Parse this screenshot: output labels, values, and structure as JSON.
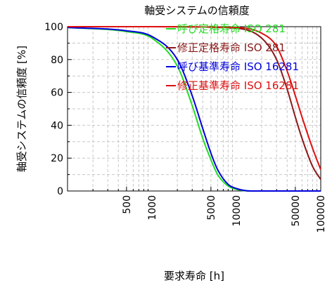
{
  "chart_data": {
    "type": "line",
    "title": "軸受システムの信頼度",
    "xlabel": "要求寿命 [h]",
    "ylabel": "軸受システムの信頼度 [%]",
    "x_scale": "log",
    "xlim": [
      100,
      100000
    ],
    "ylim": [
      0,
      100
    ],
    "x_ticks": [
      500,
      1000,
      5000,
      10000,
      50000,
      100000
    ],
    "x_tick_labels": [
      "500",
      "1000",
      "5000",
      "10000",
      "50000",
      "100000"
    ],
    "y_ticks": [
      0,
      20,
      40,
      60,
      80,
      100
    ],
    "y_tick_labels": [
      "0",
      "20",
      "40",
      "60",
      "80",
      "100"
    ],
    "grid": true,
    "legend_position": "top-right",
    "series": [
      {
        "name": "呼び定格寿命 ISO 281",
        "color": "#22dd22",
        "points": [
          [
            100,
            99.5
          ],
          [
            500,
            97
          ],
          [
            1000,
            93
          ],
          [
            2000,
            76
          ],
          [
            3000,
            52
          ],
          [
            4000,
            32
          ],
          [
            5000,
            19
          ],
          [
            6000,
            10
          ],
          [
            8000,
            3
          ],
          [
            10000,
            1
          ],
          [
            15000,
            0
          ],
          [
            100000,
            0
          ]
        ]
      },
      {
        "name": "修正定格寿命 ISO 281",
        "color": "#8b1a1a",
        "points": [
          [
            100,
            100
          ],
          [
            1000,
            100
          ],
          [
            10000,
            99
          ],
          [
            20000,
            93
          ],
          [
            30000,
            80
          ],
          [
            40000,
            62
          ],
          [
            50000,
            45
          ],
          [
            60000,
            32
          ],
          [
            80000,
            15
          ],
          [
            100000,
            7
          ]
        ]
      },
      {
        "name": "呼び基準寿命 ISO 16281",
        "color": "#0000dd",
        "points": [
          [
            100,
            99.5
          ],
          [
            500,
            97.5
          ],
          [
            1000,
            94
          ],
          [
            2000,
            80
          ],
          [
            3000,
            58
          ],
          [
            4000,
            38
          ],
          [
            5000,
            23
          ],
          [
            6000,
            13
          ],
          [
            8000,
            4
          ],
          [
            10000,
            1.5
          ],
          [
            15000,
            0
          ],
          [
            100000,
            0
          ]
        ]
      },
      {
        "name": "修正基準寿命 ISO 16281",
        "color": "#dd1111",
        "points": [
          [
            100,
            100
          ],
          [
            1000,
            100
          ],
          [
            10000,
            99.5
          ],
          [
            20000,
            96
          ],
          [
            30000,
            88
          ],
          [
            40000,
            73
          ],
          [
            50000,
            58
          ],
          [
            60000,
            45
          ],
          [
            80000,
            26
          ],
          [
            100000,
            13
          ]
        ]
      }
    ]
  }
}
